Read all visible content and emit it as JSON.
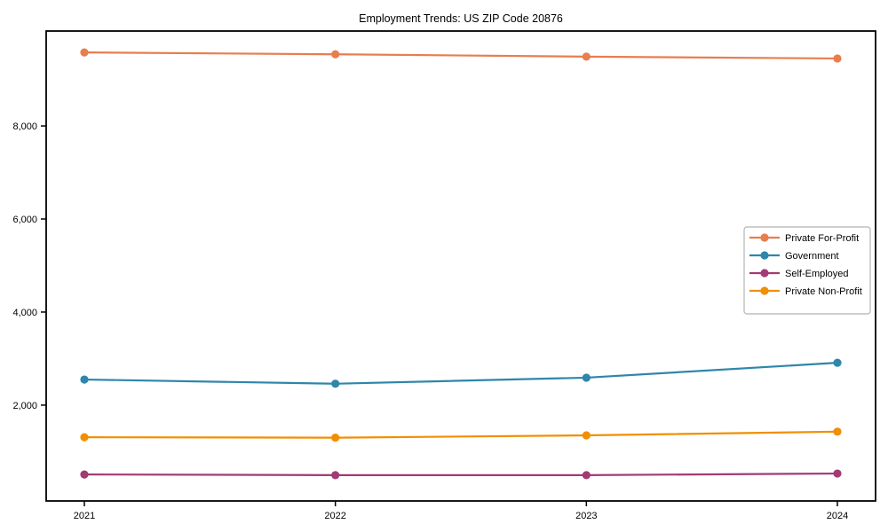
{
  "figure": {
    "background": "#ffffff",
    "axis_color": "#000000",
    "legend_border_color": "#b3b3b3",
    "legend_background": "#ffffff"
  },
  "chart_data": {
    "type": "line",
    "title": "Employment Trends: US ZIP Code 20876",
    "xlabel": "",
    "ylabel": "",
    "categories": [
      "2021",
      "2022",
      "2023",
      "2024"
    ],
    "series": [
      {
        "name": "Private For-Profit",
        "color": "#e87d4e",
        "values": [
          9580,
          9540,
          9490,
          9450
        ]
      },
      {
        "name": "Government",
        "color": "#2e86ab",
        "values": [
          2550,
          2460,
          2590,
          2910
        ]
      },
      {
        "name": "Self-Employed",
        "color": "#a23b72",
        "values": [
          510,
          495,
          495,
          530
        ]
      },
      {
        "name": "Private Non-Profit",
        "color": "#f18f01",
        "values": [
          1310,
          1300,
          1350,
          1430
        ]
      }
    ],
    "ylim": [
      -60,
      10040
    ],
    "yticks": {
      "values": [
        2000,
        4000,
        6000,
        8000
      ],
      "labels": [
        "2,000",
        "4,000",
        "6,000",
        "8,000"
      ]
    },
    "grid": false,
    "legend_position": "center right",
    "marker": "circle"
  }
}
